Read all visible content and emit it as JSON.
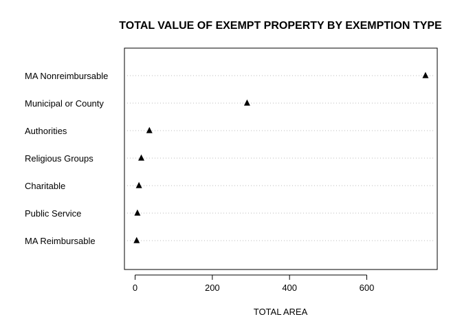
{
  "chart_data": {
    "type": "scatter",
    "style": "dot-plot",
    "title": "TOTAL VALUE OF EXEMPT PROPERTY BY EXEMPTION TYPE",
    "xlabel": "TOTAL AREA",
    "ylabel": "",
    "categories": [
      "MA Nonreimbursable",
      "Municipal or County",
      "Authorities",
      "Religious Groups",
      "Charitable",
      "Public Service",
      "MA Reimbursable"
    ],
    "values": [
      752,
      290,
      37,
      16,
      10,
      6,
      4
    ],
    "xlim": [
      -25,
      785
    ],
    "xticks": [
      0,
      200,
      400,
      600
    ],
    "xtick_labels": [
      "0",
      "200",
      "400",
      "600"
    ],
    "marker": "filled-triangle",
    "marker_color": "#000000",
    "grid": "dotted horizontal guide lines",
    "legend": "none"
  }
}
